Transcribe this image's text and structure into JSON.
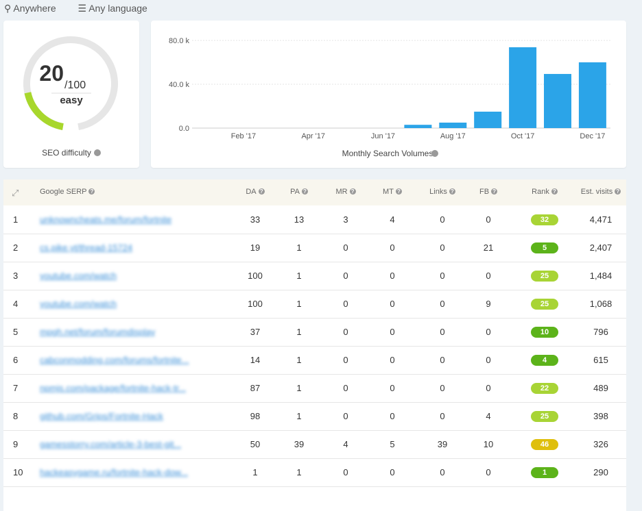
{
  "filters": {
    "location": "Anywhere",
    "language": "Any language"
  },
  "seo_difficulty": {
    "score": 20,
    "max": {
      "value": 100,
      "label": "/100"
    },
    "rating": "easy",
    "caption": "SEO difficulty"
  },
  "chart": {
    "type": "bar",
    "caption": "Monthly Search Volumes",
    "categories": [
      null,
      "Feb '17",
      null,
      "Apr '17",
      null,
      "Jun '17",
      null,
      "Aug '17",
      null,
      "Oct '17",
      null,
      "Dec '17"
    ],
    "values": [
      0,
      0,
      0,
      0,
      0,
      0,
      3000,
      5000,
      15000,
      73750,
      49400,
      60000
    ],
    "color": "#2ba4e8",
    "ylim": [
      0,
      85000
    ],
    "yticks": [
      {
        "value": 0,
        "label": "0.0"
      },
      {
        "value": 40000,
        "label": "40.0 k"
      },
      {
        "value": 80000,
        "label": "80.0 k"
      }
    ],
    "grid": true
  },
  "table": {
    "headers": [
      "Google SERP",
      "DA",
      "PA",
      "MR",
      "MT",
      "Links",
      "FB",
      "Rank",
      "Est. visits"
    ],
    "rows": [
      [
        1,
        "unknowncheats.me/forum/fortnite",
        33,
        13,
        3,
        4,
        0,
        0,
        32,
        "4,471"
      ],
      [
        2,
        "cs.pike.yt/thread-15724",
        19,
        1,
        0,
        0,
        0,
        21,
        5,
        "2,407"
      ],
      [
        3,
        "youtube.com/watch",
        100,
        1,
        0,
        0,
        0,
        0,
        25,
        "1,484"
      ],
      [
        4,
        "youtube.com/watch",
        100,
        1,
        0,
        0,
        0,
        9,
        25,
        "1,068"
      ],
      [
        5,
        "mpgh.net/forum/forumdisplay",
        37,
        1,
        0,
        0,
        0,
        0,
        10,
        "796"
      ],
      [
        6,
        "cabconmodding.com/forums/fortnite...",
        14,
        1,
        0,
        0,
        0,
        0,
        4,
        "615"
      ],
      [
        7,
        "npmjs.com/package/fortnite-hack-tr...",
        87,
        1,
        0,
        0,
        0,
        0,
        22,
        "489"
      ],
      [
        8,
        "github.com/Grips/Fortnite-Hack",
        98,
        1,
        0,
        0,
        0,
        4,
        25,
        "398"
      ],
      [
        9,
        "gamesstorry.com/article-3-best-git...",
        50,
        39,
        4,
        5,
        39,
        10,
        46,
        "326"
      ],
      [
        10,
        "hackeasygame.ru/fortnite-hack-dow...",
        1,
        1,
        0,
        0,
        0,
        0,
        1,
        "290"
      ]
    ],
    "rank_colors": [
      "#a8d435",
      "#5cb31a",
      "#a8d435",
      "#a8d435",
      "#5cb31a",
      "#5cb31a",
      "#a8d435",
      "#a8d435",
      "#dfbf0c",
      "#5cb31a"
    ]
  }
}
